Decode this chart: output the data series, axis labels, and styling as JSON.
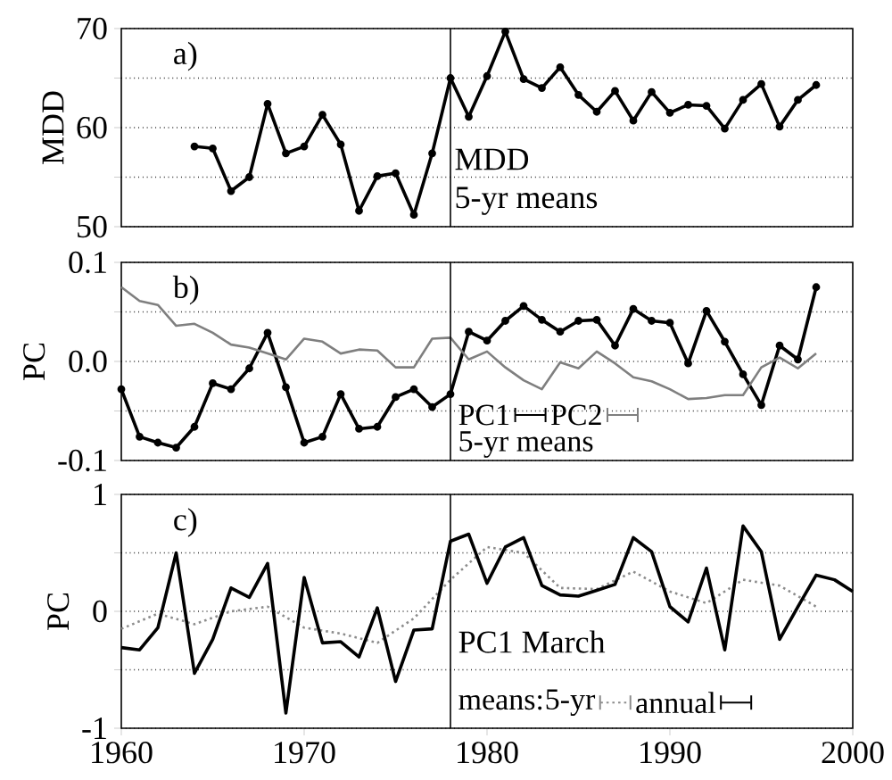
{
  "chart_data": [
    {
      "type": "line",
      "ylabel": "MDD",
      "xlim": [
        1960,
        2000
      ],
      "xticks": [
        1960,
        1970,
        1980,
        1990,
        2000
      ],
      "ylim": [
        50,
        70
      ],
      "yticks": [
        50,
        {
          "value": 55,
          "label": null
        },
        60,
        {
          "value": 65,
          "label": null
        },
        70
      ],
      "grid": "y",
      "tick_labels": "y",
      "annotations": [
        "a)",
        "MDD",
        "5-yr means"
      ],
      "ref_lines": [
        {
          "axis": "x",
          "value": 1978,
          "color": "#000000"
        }
      ],
      "series": [
        {
          "color": "#000000",
          "marker": "circle",
          "x": [
            1964,
            1965,
            1966,
            1967,
            1968,
            1969,
            1970,
            1971,
            1972,
            1973,
            1974,
            1975,
            1976,
            1977,
            1978,
            1979,
            1980,
            1981,
            1982,
            1983,
            1984,
            1985,
            1986,
            1987,
            1988,
            1989,
            1990,
            1991,
            1992,
            1993,
            1994,
            1995,
            1996,
            1997,
            1998
          ],
          "values": [
            58.1,
            57.9,
            53.6,
            55.0,
            62.4,
            57.4,
            58.1,
            61.3,
            58.3,
            51.6,
            55.1,
            55.4,
            51.2,
            57.4,
            65.0,
            61.1,
            65.2,
            69.7,
            64.9,
            64.0,
            66.1,
            63.3,
            61.6,
            63.7,
            60.7,
            63.6,
            61.5,
            62.3,
            62.2,
            59.9,
            62.8,
            64.4,
            60.1,
            62.8,
            64.3
          ]
        }
      ]
    },
    {
      "type": "line",
      "ylabel": "PC",
      "xlim": [
        1960,
        2000
      ],
      "xticks": [
        1960,
        1970,
        1980,
        1990,
        2000
      ],
      "ylim": [
        -0.1,
        0.1
      ],
      "yticks": [
        -0.1,
        {
          "value": -0.05,
          "label": null
        },
        {
          "value": 0,
          "label": "0.0"
        },
        {
          "value": 0.05,
          "label": null
        },
        0.1
      ],
      "grid": "y",
      "tick_labels": "y",
      "annotations": [
        "b)"
      ],
      "legend": "bottom",
      "legend_title": "5-yr means",
      "ref_lines": [
        {
          "axis": "x",
          "value": 1978,
          "color": "#000000"
        }
      ],
      "series": [
        {
          "name": "PC1",
          "color": "#000000",
          "marker": "circle",
          "x": [
            1960,
            1961,
            1962,
            1963,
            1964,
            1965,
            1966,
            1967,
            1968,
            1969,
            1970,
            1971,
            1972,
            1973,
            1974,
            1975,
            1976,
            1977,
            1978,
            1979,
            1980,
            1981,
            1982,
            1983,
            1984,
            1985,
            1986,
            1987,
            1988,
            1989,
            1990,
            1991,
            1992,
            1993,
            1994,
            1995,
            1996,
            1997,
            1998
          ],
          "values": [
            -0.028,
            -0.076,
            -0.082,
            -0.087,
            -0.066,
            -0.022,
            -0.028,
            -0.007,
            0.029,
            -0.026,
            -0.082,
            -0.076,
            -0.033,
            -0.068,
            -0.066,
            -0.036,
            -0.028,
            -0.046,
            -0.033,
            0.03,
            0.021,
            0.041,
            0.056,
            0.042,
            0.03,
            0.041,
            0.042,
            0.016,
            0.053,
            0.041,
            0.039,
            -0.002,
            0.051,
            0.02,
            -0.013,
            -0.044,
            0.016,
            0.002,
            0.075
          ]
        },
        {
          "name": "PC2",
          "color": "#7f7f7f",
          "x": [
            1960,
            1961,
            1962,
            1963,
            1964,
            1965,
            1966,
            1967,
            1968,
            1969,
            1970,
            1971,
            1972,
            1973,
            1974,
            1975,
            1976,
            1977,
            1978,
            1979,
            1980,
            1981,
            1982,
            1983,
            1984,
            1985,
            1986,
            1987,
            1988,
            1989,
            1990,
            1991,
            1992,
            1993,
            1994,
            1995,
            1996,
            1997,
            1998
          ],
          "values": [
            0.075,
            0.061,
            0.057,
            0.036,
            0.038,
            0.029,
            0.017,
            0.014,
            0.008,
            0.002,
            0.023,
            0.02,
            0.008,
            0.012,
            0.011,
            -0.006,
            -0.006,
            0.023,
            0.024,
            0.002,
            0.01,
            -0.006,
            -0.019,
            -0.028,
            -0.001,
            -0.007,
            0.01,
            -0.002,
            -0.016,
            -0.02,
            -0.028,
            -0.038,
            -0.037,
            -0.034,
            -0.034,
            -0.006,
            0.004,
            -0.007,
            0.008
          ]
        }
      ]
    },
    {
      "type": "line",
      "ylabel": "PC",
      "xlim": [
        1960,
        2000
      ],
      "xticks": [
        1960,
        1970,
        1980,
        1990,
        2000
      ],
      "ylim": [
        -1,
        1
      ],
      "yticks": [
        -1,
        {
          "value": -0.5,
          "label": null
        },
        0,
        {
          "value": 0.5,
          "label": null
        },
        1
      ],
      "grid": "y",
      "annotations": [
        "c)",
        "PC1 March"
      ],
      "legend": "bottom",
      "legend_title": "means:",
      "ref_lines": [
        {
          "axis": "x",
          "value": 1978,
          "color": "#000000"
        }
      ],
      "series": [
        {
          "name": "5-yr",
          "color": "#8c8c8c",
          "line_style": "dotted",
          "x": [
            1960,
            1962,
            1964,
            1966,
            1968,
            1970,
            1972,
            1974,
            1976,
            1978,
            1980,
            1982,
            1984,
            1986,
            1988,
            1990,
            1992,
            1994,
            1996,
            1998
          ],
          "values": [
            -0.15,
            -0.02,
            -0.11,
            0.0,
            0.04,
            -0.14,
            -0.19,
            -0.27,
            -0.06,
            0.27,
            0.55,
            0.5,
            0.2,
            0.19,
            0.34,
            0.17,
            0.07,
            0.27,
            0.22,
            0.04
          ]
        },
        {
          "name": "annual",
          "color": "#000000",
          "x": [
            1960,
            1961,
            1962,
            1963,
            1964,
            1965,
            1966,
            1967,
            1968,
            1969,
            1970,
            1971,
            1972,
            1973,
            1974,
            1975,
            1976,
            1977,
            1978,
            1979,
            1980,
            1981,
            1982,
            1983,
            1984,
            1985,
            1986,
            1987,
            1988,
            1989,
            1990,
            1991,
            1992,
            1993,
            1994,
            1995,
            1996,
            1997,
            1998,
            1999,
            2000
          ],
          "values": [
            -0.31,
            -0.33,
            -0.14,
            0.5,
            -0.53,
            -0.24,
            0.2,
            0.12,
            0.41,
            -0.87,
            0.29,
            -0.27,
            -0.26,
            -0.39,
            0.03,
            -0.6,
            -0.16,
            -0.15,
            0.6,
            0.66,
            0.24,
            0.55,
            0.63,
            0.22,
            0.14,
            0.13,
            0.18,
            0.23,
            0.63,
            0.51,
            0.04,
            -0.09,
            0.37,
            -0.33,
            0.73,
            0.51,
            -0.24,
            0.04,
            0.31,
            0.27,
            0.17
          ]
        }
      ]
    }
  ]
}
